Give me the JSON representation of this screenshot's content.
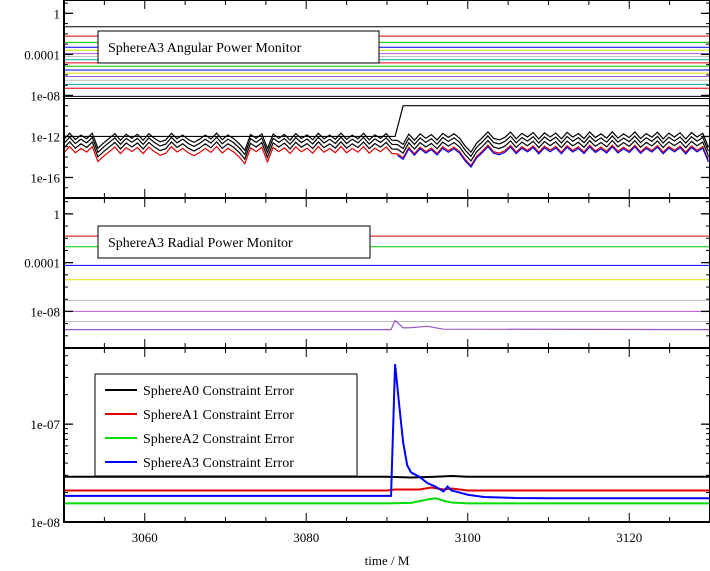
{
  "chart_data": [
    {
      "type": "line",
      "title": "SphereA3 Angular Power Monitor",
      "xlabel": "",
      "ylabel": "",
      "yscale": "log",
      "xlim": [
        3050,
        3130
      ],
      "ylim": [
        1e-18,
        20
      ],
      "yticks": [
        {
          "value": 1,
          "label": "1"
        },
        {
          "value": 0.0001,
          "label": "0.0001"
        },
        {
          "value": 1e-08,
          "label": "1e-08"
        },
        {
          "value": 1e-12,
          "label": "1e-12"
        },
        {
          "value": 1e-16,
          "label": "1e-16"
        }
      ],
      "flat_lines": [
        {
          "value": 0.05,
          "color": "#000000"
        },
        {
          "value": 0.006,
          "color": "#e00000"
        },
        {
          "value": 0.0015,
          "color": "#00cc00"
        },
        {
          "value": 0.0005,
          "color": "#0000ff"
        },
        {
          "value": 0.00025,
          "color": "#dddd00"
        },
        {
          "value": 0.00012,
          "color": "#bb55dd"
        },
        {
          "value": 6e-05,
          "color": "#bbbbbb"
        },
        {
          "value": 3e-05,
          "color": "#00aaaa"
        },
        {
          "value": 1.5e-05,
          "color": "#e00000"
        },
        {
          "value": 7e-06,
          "color": "#00cc00"
        },
        {
          "value": 3e-06,
          "color": "#0000ff"
        },
        {
          "value": 1.5e-06,
          "color": "#dddd00"
        },
        {
          "value": 7e-07,
          "color": "#bb55dd"
        },
        {
          "value": 3e-07,
          "color": "#bbbbbb"
        },
        {
          "value": 1.2e-07,
          "color": "#00aaaa"
        },
        {
          "value": 5e-08,
          "color": "#e00000"
        },
        {
          "value": 8e-09,
          "color": "#000000"
        },
        {
          "value": 5e-09,
          "color": "#000000"
        }
      ],
      "series": [
        {
          "color": "#000000",
          "x": [
            3050,
            3091,
            3092,
            3130
          ],
          "y": [
            1e-12,
            1e-12,
            1e-09,
            1e-09
          ]
        },
        {
          "color": "#000000",
          "offset_decades": 0.4
        },
        {
          "color": "#000000",
          "offset_decades": 0.0
        },
        {
          "color": "#000000",
          "offset_decades": -0.45
        },
        {
          "color": "#e00000",
          "offset_decades": -0.9
        },
        {
          "color": "#0000ff",
          "offset_decades": -1.05,
          "x_start": 3091
        }
      ],
      "noisy_base": {
        "x_start": 3050,
        "x_end": 3130,
        "step": 0.7,
        "y_before": 3e-13,
        "y_after_3091": 3e-13,
        "y_after_3097": 4e-13,
        "dips": [
          {
            "x": 3054.5,
            "depth_decades": 0.8
          },
          {
            "x": 3062,
            "depth_decades": 0.7
          },
          {
            "x": 3066,
            "depth_decades": 0.9
          },
          {
            "x": 3072,
            "depth_decades": 1.0
          },
          {
            "x": 3075,
            "depth_decades": 0.8
          },
          {
            "x": 3091.5,
            "depth_decades": 0.6
          },
          {
            "x": 3100,
            "depth_decades": 1.4
          },
          {
            "x": 3101,
            "depth_decades": 0.9
          },
          {
            "x": 3104,
            "depth_decades": 0.6
          },
          {
            "x": 3130,
            "depth_decades": 0.8
          }
        ]
      }
    },
    {
      "type": "line",
      "title": "SphereA3 Radial Power Monitor",
      "xlabel": "",
      "ylabel": "",
      "yscale": "log",
      "xlim": [
        3050,
        3130
      ],
      "ylim": [
        1e-11,
        20
      ],
      "yticks": [
        {
          "value": 1,
          "label": "1"
        },
        {
          "value": 0.0001,
          "label": "0.0001"
        },
        {
          "value": 1e-08,
          "label": "1e-08"
        }
      ],
      "flat_lines": [
        {
          "value": 0.015,
          "color": "#e00000"
        },
        {
          "value": 0.002,
          "color": "#00cc00"
        },
        {
          "value": 6e-05,
          "color": "#0000ff"
        },
        {
          "value": 4e-06,
          "color": "#dddd00"
        },
        {
          "value": 8e-08,
          "color": "#bbbbbb"
        },
        {
          "value": 1e-08,
          "color": "#bb55dd"
        },
        {
          "value": 1.5e-09,
          "color": "#bbbbbb"
        }
      ],
      "series": [
        {
          "color": "#9955cc",
          "x": [
            3050,
            3090.5,
            3091,
            3092,
            3093,
            3095,
            3097,
            3130
          ],
          "y": [
            3.2e-10,
            3.2e-10,
            1.8e-09,
            4.5e-10,
            4.7e-10,
            6e-10,
            3.5e-10,
            3.2e-10
          ]
        }
      ]
    },
    {
      "type": "line",
      "title": "",
      "xlabel": "time / M",
      "ylabel": "",
      "yscale": "log",
      "xlim": [
        3050,
        3130
      ],
      "ylim": [
        1e-08,
        6e-07
      ],
      "xticks": [
        3060,
        3080,
        3100,
        3120
      ],
      "yticks": [
        {
          "value": 1e-07,
          "label": "1e-07"
        },
        {
          "value": 1e-08,
          "label": "1e-08"
        }
      ],
      "legend": "top-left",
      "series": [
        {
          "name": "SphereA0 Constraint Error",
          "color": "#000000",
          "x": [
            3050,
            3090,
            3093,
            3096,
            3098,
            3100,
            3104,
            3130
          ],
          "y": [
            2.9e-08,
            2.9e-08,
            2.85e-08,
            2.9e-08,
            2.95e-08,
            2.9e-08,
            2.9e-08,
            2.9e-08
          ]
        },
        {
          "name": "SphereA1 Constraint Error",
          "color": "#e00000",
          "x": [
            3050,
            3090,
            3091,
            3094,
            3095.5,
            3097,
            3098,
            3099,
            3100,
            3102,
            3106,
            3130
          ],
          "y": [
            2.1e-08,
            2.1e-08,
            2.15e-08,
            2.15e-08,
            2.25e-08,
            2.15e-08,
            2.2e-08,
            2.15e-08,
            2.1e-08,
            2.1e-08,
            2.1e-08,
            2.1e-08
          ]
        },
        {
          "name": "SphereA2 Constraint Error",
          "color": "#00dd00",
          "x": [
            3050,
            3090,
            3093,
            3095,
            3096,
            3097,
            3098,
            3100,
            3104,
            3130
          ],
          "y": [
            1.55e-08,
            1.55e-08,
            1.57e-08,
            1.7e-08,
            1.75e-08,
            1.65e-08,
            1.58e-08,
            1.55e-08,
            1.55e-08,
            1.55e-08
          ]
        },
        {
          "name": "SphereA3 Constraint Error",
          "color": "#0000ff",
          "x": [
            3050,
            3090.5,
            3091,
            3091.5,
            3092,
            3092.5,
            3093,
            3094,
            3095,
            3096,
            3097,
            3097.5,
            3098,
            3099,
            3100,
            3101,
            3102,
            3104,
            3106,
            3110,
            3130
          ],
          "y": [
            1.85e-08,
            1.85e-08,
            4.1e-07,
            1.6e-07,
            6.5e-08,
            3.8e-08,
            3.2e-08,
            2.9e-08,
            2.5e-08,
            2.3e-08,
            2.05e-08,
            2.3e-08,
            2.1e-08,
            2e-08,
            1.9e-08,
            1.85e-08,
            1.8e-08,
            1.78e-08,
            1.76e-08,
            1.75e-08,
            1.75e-08
          ]
        }
      ]
    }
  ]
}
